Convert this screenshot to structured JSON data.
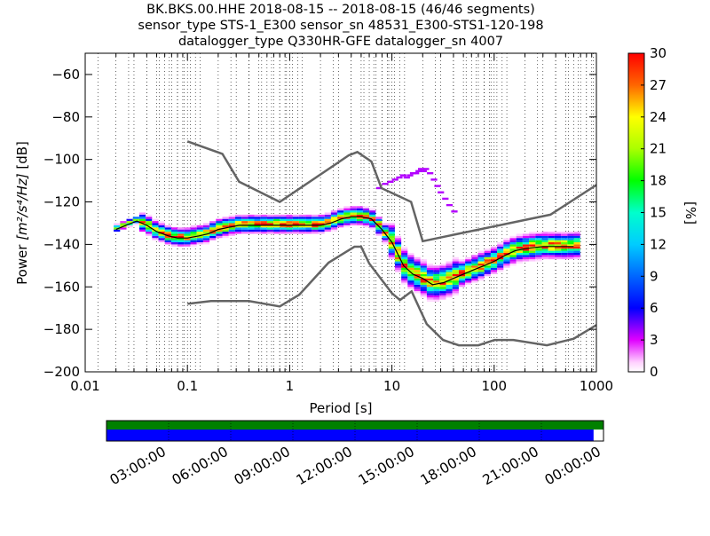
{
  "title_lines": [
    "BK.BKS.00.HHE   2018-08-15 -- 2018-08-15  (46/46 segments)",
    "sensor_type STS-1_E300 sensor_sn 48531_E300-STS1-120-198",
    "datalogger_type Q330HR-GFE datalogger_sn 4007"
  ],
  "chart_data": {
    "type": "heatmap",
    "xlabel": "Period [s]",
    "ylabel_main": "Power ",
    "ylabel_units_math": "[m²/s⁴/Hz]",
    "ylabel_suffix": " [dB]",
    "x_scale": "log",
    "xlim": [
      0.01,
      1000
    ],
    "ylim": [
      -200,
      -50
    ],
    "x_ticks": [
      {
        "value": 0.01,
        "label": "0.01"
      },
      {
        "value": 0.1,
        "label": "0.1"
      },
      {
        "value": 1,
        "label": "1"
      },
      {
        "value": 10,
        "label": "10"
      },
      {
        "value": 100,
        "label": "100"
      },
      {
        "value": 1000,
        "label": "1000"
      }
    ],
    "y_ticks": [
      {
        "value": -60,
        "label": "−60"
      },
      {
        "value": -80,
        "label": "−80"
      },
      {
        "value": -100,
        "label": "−100"
      },
      {
        "value": -120,
        "label": "−120"
      },
      {
        "value": -140,
        "label": "−140"
      },
      {
        "value": -160,
        "label": "−160"
      },
      {
        "value": -180,
        "label": "−180"
      },
      {
        "value": -200,
        "label": "−200"
      }
    ],
    "grid": "dotted vertical lines at period bins",
    "colorbar": {
      "label": "[%]",
      "range": [
        0,
        30
      ],
      "ticks": [
        {
          "value": 0,
          "label": "0"
        },
        {
          "value": 3,
          "label": "3"
        },
        {
          "value": 6,
          "label": "6"
        },
        {
          "value": 9,
          "label": "9"
        },
        {
          "value": 12,
          "label": "12"
        },
        {
          "value": 15,
          "label": "15"
        },
        {
          "value": 18,
          "label": "18"
        },
        {
          "value": 21,
          "label": "21"
        },
        {
          "value": 24,
          "label": "24"
        },
        {
          "value": 27,
          "label": "27"
        },
        {
          "value": 30,
          "label": "30"
        }
      ]
    },
    "noise_model_high": [
      [
        0.1,
        -91.5
      ],
      [
        0.22,
        -97.4
      ],
      [
        0.32,
        -110.5
      ],
      [
        0.8,
        -120.0
      ],
      [
        3.8,
        -98.0
      ],
      [
        4.6,
        -96.5
      ],
      [
        6.3,
        -101.0
      ],
      [
        7.9,
        -113.5
      ],
      [
        15.4,
        -120.0
      ],
      [
        20.0,
        -138.5
      ],
      [
        354.8,
        -126.0
      ],
      [
        1000,
        -112.0
      ]
    ],
    "noise_model_low": [
      [
        0.1,
        -168.0
      ],
      [
        0.17,
        -166.7
      ],
      [
        0.4,
        -166.7
      ],
      [
        0.8,
        -169.2
      ],
      [
        1.24,
        -163.7
      ],
      [
        2.4,
        -148.6
      ],
      [
        4.3,
        -141.1
      ],
      [
        5.0,
        -141.1
      ],
      [
        6.0,
        -149.0
      ],
      [
        10.0,
        -163.0
      ],
      [
        12.0,
        -166.2
      ],
      [
        15.6,
        -162.1
      ],
      [
        21.9,
        -177.5
      ],
      [
        31.6,
        -185.0
      ],
      [
        45.0,
        -187.5
      ],
      [
        70.0,
        -187.5
      ],
      [
        101.0,
        -185.0
      ],
      [
        154.0,
        -185.0
      ],
      [
        328.0,
        -187.5
      ],
      [
        600.0,
        -184.4
      ],
      [
        1000,
        -178.0
      ]
    ],
    "mode_curve": [
      [
        0.02,
        -133
      ],
      [
        0.025,
        -131
      ],
      [
        0.032,
        -129
      ],
      [
        0.04,
        -131
      ],
      [
        0.05,
        -134
      ],
      [
        0.065,
        -136
      ],
      [
        0.08,
        -137
      ],
      [
        0.1,
        -137
      ],
      [
        0.13,
        -136
      ],
      [
        0.16,
        -135
      ],
      [
        0.2,
        -133
      ],
      [
        0.25,
        -132
      ],
      [
        0.32,
        -131
      ],
      [
        0.4,
        -131
      ],
      [
        0.5,
        -131
      ],
      [
        0.63,
        -131
      ],
      [
        0.8,
        -131
      ],
      [
        1.0,
        -131
      ],
      [
        1.3,
        -131
      ],
      [
        1.6,
        -131
      ],
      [
        2.0,
        -131
      ],
      [
        2.5,
        -130
      ],
      [
        3.2,
        -128
      ],
      [
        4.0,
        -127
      ],
      [
        5.0,
        -127
      ],
      [
        6.3,
        -128
      ],
      [
        8.0,
        -133
      ],
      [
        10,
        -139
      ],
      [
        13,
        -150
      ],
      [
        16,
        -154
      ],
      [
        20,
        -156
      ],
      [
        25,
        -159
      ],
      [
        32,
        -158
      ],
      [
        40,
        -156
      ],
      [
        50,
        -154
      ],
      [
        63,
        -152
      ],
      [
        80,
        -150
      ],
      [
        100,
        -148
      ],
      [
        130,
        -145
      ],
      [
        160,
        -143
      ],
      [
        200,
        -142
      ],
      [
        300,
        -141
      ],
      [
        400,
        -141
      ],
      [
        600,
        -141
      ]
    ],
    "time_axis": {
      "labels": [
        "03:00:00",
        "06:00:00",
        "09:00:00",
        "12:00:00",
        "15:00:00",
        "18:00:00",
        "21:00:00",
        "00:00:00"
      ],
      "coverage_fraction": 0.98,
      "data_color": "#008000",
      "gap_color": "#0000ff"
    }
  }
}
